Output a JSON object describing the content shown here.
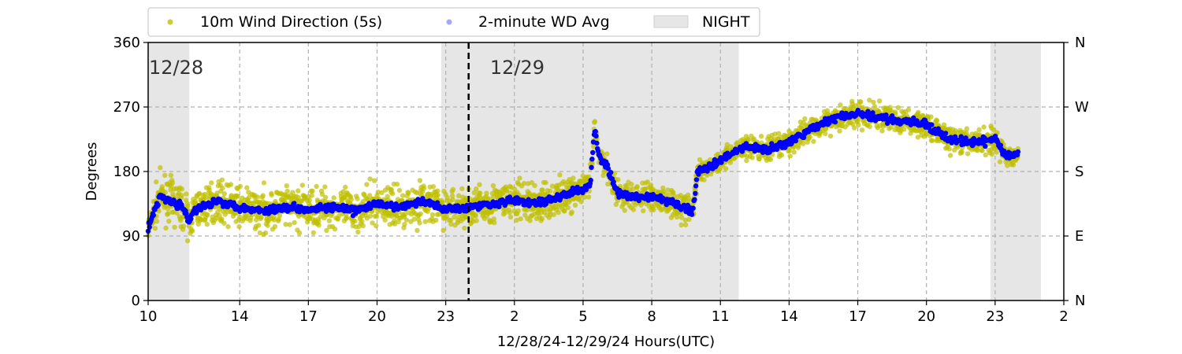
{
  "chart_data": {
    "type": "scatter",
    "xlabel": "12/28/24-12/29/24  Hours(UTC)",
    "ylabel": "Degrees",
    "xlim": [
      10,
      50
    ],
    "ylim": [
      0,
      360
    ],
    "x_ticks": [
      {
        "value": 10,
        "label": "10"
      },
      {
        "value": 14,
        "label": "14"
      },
      {
        "value": 17,
        "label": "17"
      },
      {
        "value": 20,
        "label": "20"
      },
      {
        "value": 23,
        "label": "23"
      },
      {
        "value": 26,
        "label": "2"
      },
      {
        "value": 29,
        "label": "5"
      },
      {
        "value": 32,
        "label": "8"
      },
      {
        "value": 35,
        "label": "11"
      },
      {
        "value": 38,
        "label": "14"
      },
      {
        "value": 41,
        "label": "17"
      },
      {
        "value": 44,
        "label": "20"
      },
      {
        "value": 47,
        "label": "23"
      },
      {
        "value": 50,
        "label": "2"
      }
    ],
    "y_ticks": [
      0,
      90,
      180,
      270,
      360
    ],
    "y2_ticks": [
      {
        "value": 0,
        "label": "N"
      },
      {
        "value": 90,
        "label": "E"
      },
      {
        "value": 180,
        "label": "S"
      },
      {
        "value": 270,
        "label": "W"
      },
      {
        "value": 360,
        "label": "N"
      }
    ],
    "grid": true,
    "legend_position": "top",
    "legend": [
      "10m Wind Direction (5s)",
      "2-minute WD Avg",
      "NIGHT"
    ],
    "night_spans": [
      [
        10,
        11.8
      ],
      [
        22.8,
        35.8
      ],
      [
        46.8,
        49
      ]
    ],
    "midnight_line": 24,
    "day_labels": [
      {
        "x": 10,
        "text": "12/28"
      },
      {
        "x": 24.9,
        "text": "12/29"
      }
    ],
    "colors": {
      "raw": "#bfbf00",
      "avg": "#0000ff",
      "night": "#e6e6e6",
      "grid": "#b0b0b0"
    },
    "series": [
      {
        "name": "2-minute WD Avg",
        "x": [
          10,
          10.5,
          11,
          11.5,
          11.8,
          12,
          13,
          14,
          15,
          16,
          17,
          18,
          19,
          20,
          21,
          22,
          23,
          24,
          25,
          26,
          27,
          28,
          28.5,
          29,
          29.3,
          29.5,
          29.7,
          30,
          30.5,
          31,
          32,
          33,
          33.8,
          34,
          35,
          36,
          37,
          38,
          39,
          40,
          41,
          42,
          43,
          44,
          45,
          46,
          47,
          47.5,
          48
        ],
        "values": [
          100,
          145,
          140,
          130,
          110,
          125,
          140,
          130,
          125,
          130,
          128,
          130,
          125,
          135,
          130,
          138,
          128,
          130,
          135,
          140,
          135,
          145,
          150,
          155,
          160,
          240,
          200,
          190,
          150,
          145,
          145,
          135,
          125,
          180,
          195,
          215,
          210,
          220,
          240,
          255,
          260,
          255,
          250,
          245,
          225,
          220,
          225,
          200,
          205
        ]
      },
      {
        "name": "10m Wind Direction (5s)",
        "x": [
          10,
          10.5,
          11,
          11.5,
          11.8,
          12,
          13,
          14,
          15,
          16,
          17,
          18,
          19,
          20,
          21,
          22,
          23,
          24,
          25,
          26,
          27,
          28,
          28.5,
          29,
          29.3,
          29.5,
          29.7,
          30,
          30.5,
          31,
          32,
          33,
          33.8,
          34,
          35,
          36,
          37,
          38,
          39,
          40,
          41,
          42,
          43,
          44,
          45,
          46,
          47,
          47.5,
          48
        ],
        "values": [
          100,
          145,
          140,
          130,
          110,
          125,
          140,
          130,
          125,
          130,
          128,
          130,
          125,
          135,
          130,
          138,
          128,
          130,
          135,
          140,
          135,
          145,
          150,
          155,
          160,
          240,
          200,
          190,
          150,
          145,
          145,
          135,
          125,
          180,
          195,
          215,
          210,
          220,
          240,
          255,
          260,
          255,
          250,
          245,
          225,
          220,
          225,
          200,
          205
        ],
        "spread": [
          20,
          30,
          30,
          30,
          25,
          28,
          28,
          28,
          30,
          30,
          30,
          30,
          30,
          28,
          30,
          30,
          28,
          28,
          30,
          30,
          30,
          25,
          25,
          20,
          20,
          20,
          20,
          20,
          20,
          22,
          22,
          22,
          25,
          15,
          15,
          18,
          18,
          18,
          18,
          20,
          20,
          20,
          20,
          18,
          18,
          18,
          18,
          15,
          15
        ]
      }
    ]
  }
}
